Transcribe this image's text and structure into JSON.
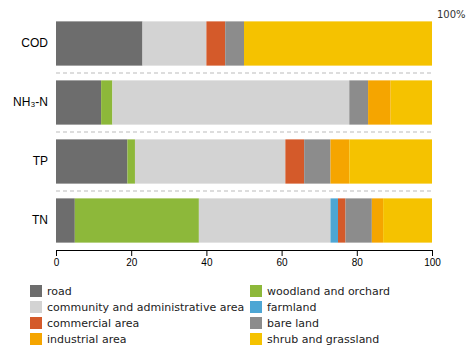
{
  "chart_data": {
    "type": "bar",
    "orientation": "horizontal",
    "stacked": true,
    "categories": [
      "TN",
      "TP",
      "NH₃-N",
      "COD"
    ],
    "series": [
      {
        "name": "road",
        "color": "#6d6d6d",
        "values": [
          5,
          19,
          12,
          23
        ]
      },
      {
        "name": "woodland and orchard",
        "color": "#8db83a",
        "values": [
          33,
          2,
          3,
          0
        ]
      },
      {
        "name": "community and administrative area",
        "color": "#d3d3d3",
        "values": [
          35,
          40,
          63,
          17
        ]
      },
      {
        "name": "farmland",
        "color": "#4da6d4",
        "values": [
          2,
          0,
          0,
          0
        ]
      },
      {
        "name": "commercial area",
        "color": "#d45a2a",
        "values": [
          2,
          5,
          0,
          5
        ]
      },
      {
        "name": "bare land",
        "color": "#8c8c8c",
        "values": [
          7,
          7,
          5,
          5
        ]
      },
      {
        "name": "industrial area",
        "color": "#f5a500",
        "values": [
          3,
          5,
          6,
          0
        ]
      },
      {
        "name": "shrub and grassland",
        "color": "#f5c200",
        "values": [
          13,
          22,
          11,
          50
        ]
      }
    ],
    "xlim": [
      0,
      100
    ],
    "xticks": [
      0,
      20,
      40,
      60,
      80,
      100
    ],
    "annotations": [
      {
        "text": "100%",
        "x": 100
      }
    ]
  }
}
